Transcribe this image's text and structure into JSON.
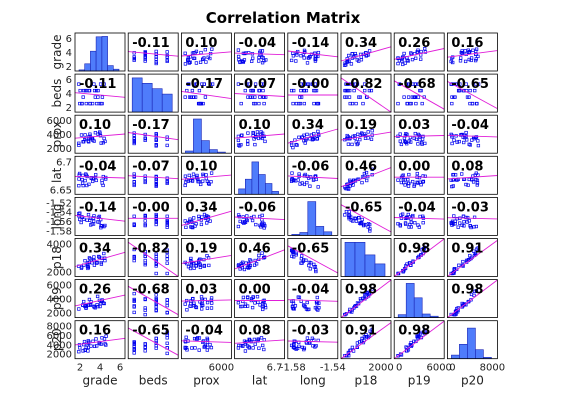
{
  "chart_data": {
    "type": "scatter-matrix",
    "title": "Correlation Matrix",
    "variables": [
      "grade",
      "beds",
      "prox",
      "lat",
      "long",
      "p18",
      "p19",
      "p20"
    ],
    "correlations": [
      [
        "",
        "-0.11",
        "0.10",
        "-0.04",
        "-0.14",
        "0.34",
        "0.26",
        "0.16"
      ],
      [
        "-0.11",
        "",
        "-0.17",
        "-0.07",
        "-0.00",
        "-0.82",
        "-0.68",
        "-0.65"
      ],
      [
        "0.10",
        "-0.17",
        "",
        "0.10",
        "0.34",
        "0.19",
        "0.03",
        "-0.04"
      ],
      [
        "-0.04",
        "-0.07",
        "0.10",
        "",
        "-0.06",
        "0.46",
        "0.00",
        "0.08"
      ],
      [
        "-0.14",
        "-0.00",
        "0.34",
        "-0.06",
        "",
        "-0.65",
        "-0.04",
        "-0.03"
      ],
      [
        "0.34",
        "-0.82",
        "0.19",
        "0.46",
        "-0.65",
        "",
        "0.98",
        "0.91"
      ],
      [
        "0.26",
        "-0.68",
        "0.03",
        "0.00",
        "-0.04",
        "0.98",
        "",
        "0.98"
      ],
      [
        "0.16",
        "-0.65",
        "-0.04",
        "0.08",
        "-0.03",
        "0.91",
        "0.98",
        ""
      ]
    ],
    "y_ticks": [
      [
        "6",
        "4",
        "2"
      ],
      [
        "6",
        "4",
        "2"
      ],
      [
        "6000",
        "4000",
        "2000"
      ],
      [
        "6.7",
        "6.65"
      ],
      [
        "-1.52",
        "-1.54",
        "-1.56",
        "-1.58"
      ],
      [
        "4000",
        "2000"
      ],
      [
        "6000",
        "4000",
        "2000"
      ],
      [
        "8000",
        "6000",
        "4000",
        "2000"
      ]
    ],
    "x_ticks": [
      [
        "2",
        "4",
        "6"
      ],
      [],
      [
        "6000"
      ],
      [
        "6.7"
      ],
      [
        "-1.58",
        "-1.54"
      ],
      [
        "2000"
      ],
      [
        "0",
        "6000"
      ],
      [
        "0",
        "8000"
      ]
    ],
    "histograms": [
      [
        0.03,
        0.2,
        0.55,
        0.95,
        0.96,
        0.15,
        0.05
      ],
      [
        0.95,
        0.8,
        0.65,
        0.5
      ],
      [
        0.06,
        0.95,
        0.35,
        0.1,
        0.03
      ],
      [
        0.15,
        0.42,
        0.9,
        0.55,
        0.3,
        0.08
      ],
      [
        0.03,
        0.08,
        0.94,
        0.25,
        0.1
      ],
      [
        0.95,
        0.95,
        0.6,
        0.35
      ],
      [
        0.08,
        0.95,
        0.55,
        0.1,
        0.04
      ],
      [
        0.1,
        0.4,
        0.85,
        0.25,
        0.04
      ]
    ],
    "grid": false,
    "colors": {
      "points": "#0000ee",
      "bars": "#4f7cfb",
      "bars_edge": "#1a23b4",
      "fit_line": "#e01ed8"
    }
  }
}
